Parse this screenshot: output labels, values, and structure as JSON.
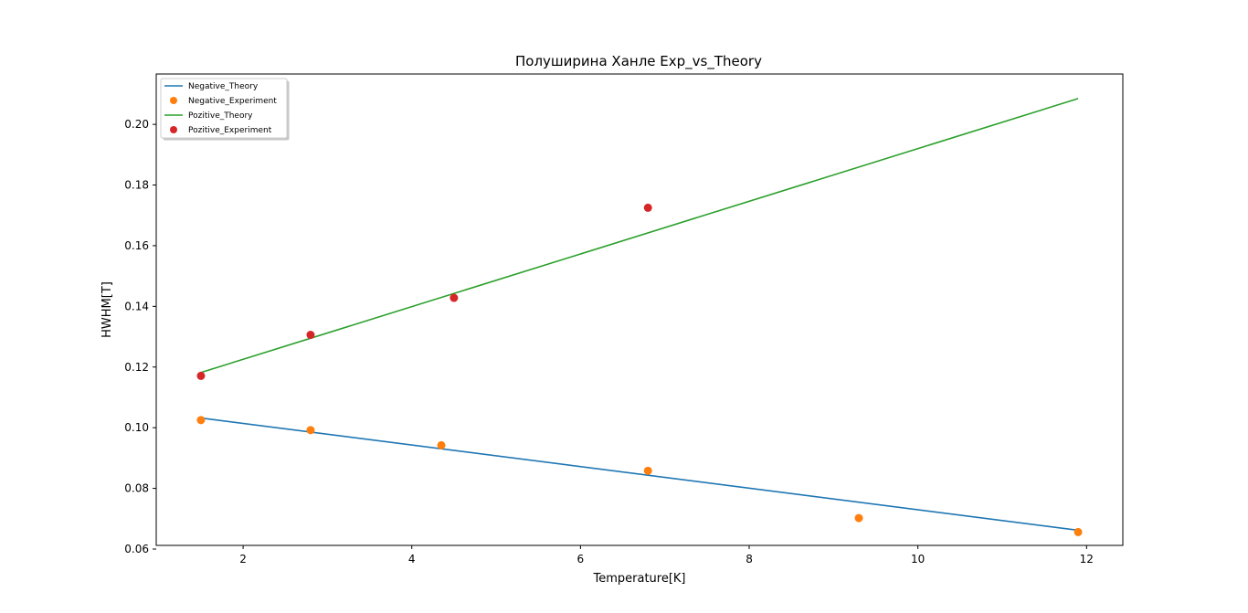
{
  "chart_data": {
    "type": "line",
    "title": "Полуширина Ханле Exp_vs_Theory",
    "xlabel": "Temperature[K]",
    "ylabel": "HWHM[T]",
    "xlim": [
      0.97,
      12.43
    ],
    "ylim": [
      0.0612,
      0.2166
    ],
    "xticks": [
      2,
      4,
      6,
      8,
      10,
      12
    ],
    "yticks": [
      0.06,
      0.08,
      0.1,
      0.12,
      0.14,
      0.16,
      0.18,
      0.2
    ],
    "ytick_labels": [
      "0.06",
      "0.08",
      "0.10",
      "0.12",
      "0.14",
      "0.16",
      "0.18",
      "0.20"
    ],
    "grid": false,
    "legend_position": "top-left",
    "series": [
      {
        "name": "Negative_Theory",
        "kind": "line",
        "color": "#1f77b4",
        "x": [
          1.5,
          11.9
        ],
        "y": [
          0.1032,
          0.0662
        ]
      },
      {
        "name": "Negative_Experiment",
        "kind": "scatter",
        "color": "#ff7f0e",
        "x": [
          1.5,
          2.8,
          4.35,
          6.8,
          9.3,
          11.9
        ],
        "y": [
          0.1025,
          0.0992,
          0.0942,
          0.0858,
          0.0702,
          0.0656
        ]
      },
      {
        "name": "Pozitive_Theory",
        "kind": "line",
        "color": "#2ca02c",
        "x": [
          1.5,
          11.9
        ],
        "y": [
          0.1182,
          0.2085
        ]
      },
      {
        "name": "Pozitive_Experiment",
        "kind": "scatter",
        "color": "#d62728",
        "x": [
          1.5,
          2.8,
          4.5,
          6.8
        ],
        "y": [
          0.1171,
          0.1306,
          0.1428,
          0.1725
        ]
      }
    ]
  }
}
